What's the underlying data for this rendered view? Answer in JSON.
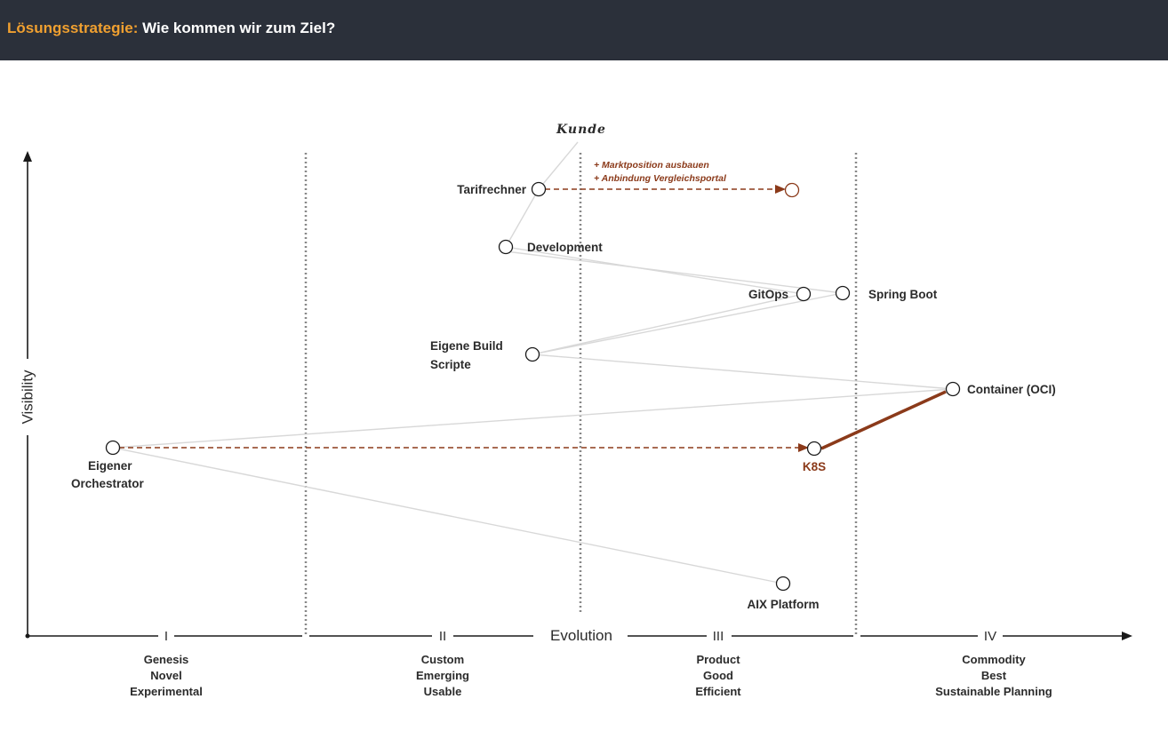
{
  "header": {
    "accent": "Lösungsstrategie:",
    "title": "Wie kommen wir zum Ziel?"
  },
  "axes": {
    "y_label": "Visibility",
    "x_label": "Evolution",
    "phases": [
      {
        "numeral": "I",
        "lines": [
          "Genesis",
          "Novel",
          "Experimental"
        ]
      },
      {
        "numeral": "II",
        "lines": [
          "Custom",
          "Emerging",
          "Usable"
        ]
      },
      {
        "numeral": "III",
        "lines": [
          "Product",
          "Good",
          "Efficient"
        ]
      },
      {
        "numeral": "IV",
        "lines": [
          "Commodity",
          "Best",
          "Sustainable Planning"
        ]
      }
    ]
  },
  "anchor": "Kunde",
  "components": {
    "tarifrechner": "Tarifrechner",
    "development": "Development",
    "gitops": "GitOps",
    "spring_boot": "Spring Boot",
    "eigene_build_1": "Eigene Build",
    "eigene_build_2": "Scripte",
    "container": "Container (OCI)",
    "eigener_1": "Eigener",
    "eigener_2": "Orchestrator",
    "k8s": "K8S",
    "aix": "AIX Platform"
  },
  "notes": [
    "+ Marktposition ausbauen",
    "+ Anbindung Vergleichsportal"
  ],
  "colors": {
    "header_bg": "#2b303a",
    "accent": "#f0a030",
    "evolution_red": "#8b3a1a",
    "link_gray": "#d8d8d8"
  }
}
